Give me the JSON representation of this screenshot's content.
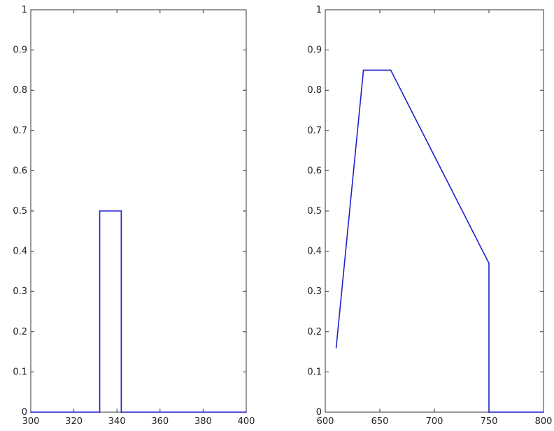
{
  "chart_data": [
    {
      "type": "line",
      "xlim": [
        300,
        400
      ],
      "ylim": [
        0,
        1
      ],
      "xticks": [
        300,
        320,
        340,
        360,
        380,
        400
      ],
      "yticks": [
        0,
        0.1,
        0.2,
        0.3,
        0.4,
        0.5,
        0.6,
        0.7,
        0.8,
        0.9,
        1
      ],
      "xtick_labels": [
        "300",
        "320",
        "340",
        "360",
        "380",
        "400"
      ],
      "ytick_labels": [
        "0",
        "0.1",
        "0.2",
        "0.3",
        "0.4",
        "0.5",
        "0.6",
        "0.7",
        "0.8",
        "0.9",
        "1"
      ],
      "series": [
        {
          "color": "#1f1fd0",
          "x": [
            300,
            332,
            332,
            342,
            342,
            400
          ],
          "y": [
            0,
            0,
            0.5,
            0.5,
            0,
            0
          ]
        }
      ],
      "grid": false
    },
    {
      "type": "line",
      "xlim": [
        600,
        800
      ],
      "ylim": [
        0,
        1
      ],
      "xticks": [
        600,
        650,
        700,
        750,
        800
      ],
      "yticks": [
        0,
        0.1,
        0.2,
        0.3,
        0.4,
        0.5,
        0.6,
        0.7,
        0.8,
        0.9,
        1
      ],
      "xtick_labels": [
        "600",
        "650",
        "700",
        "750",
        "800"
      ],
      "ytick_labels": [
        "0",
        "0.1",
        "0.2",
        "0.3",
        "0.4",
        "0.5",
        "0.6",
        "0.7",
        "0.8",
        "0.9",
        "1"
      ],
      "series": [
        {
          "color": "#1f1fd0",
          "x": [
            610,
            635,
            660,
            750,
            750,
            800
          ],
          "y": [
            0.16,
            0.85,
            0.85,
            0.37,
            0,
            0
          ]
        }
      ],
      "grid": false
    }
  ]
}
